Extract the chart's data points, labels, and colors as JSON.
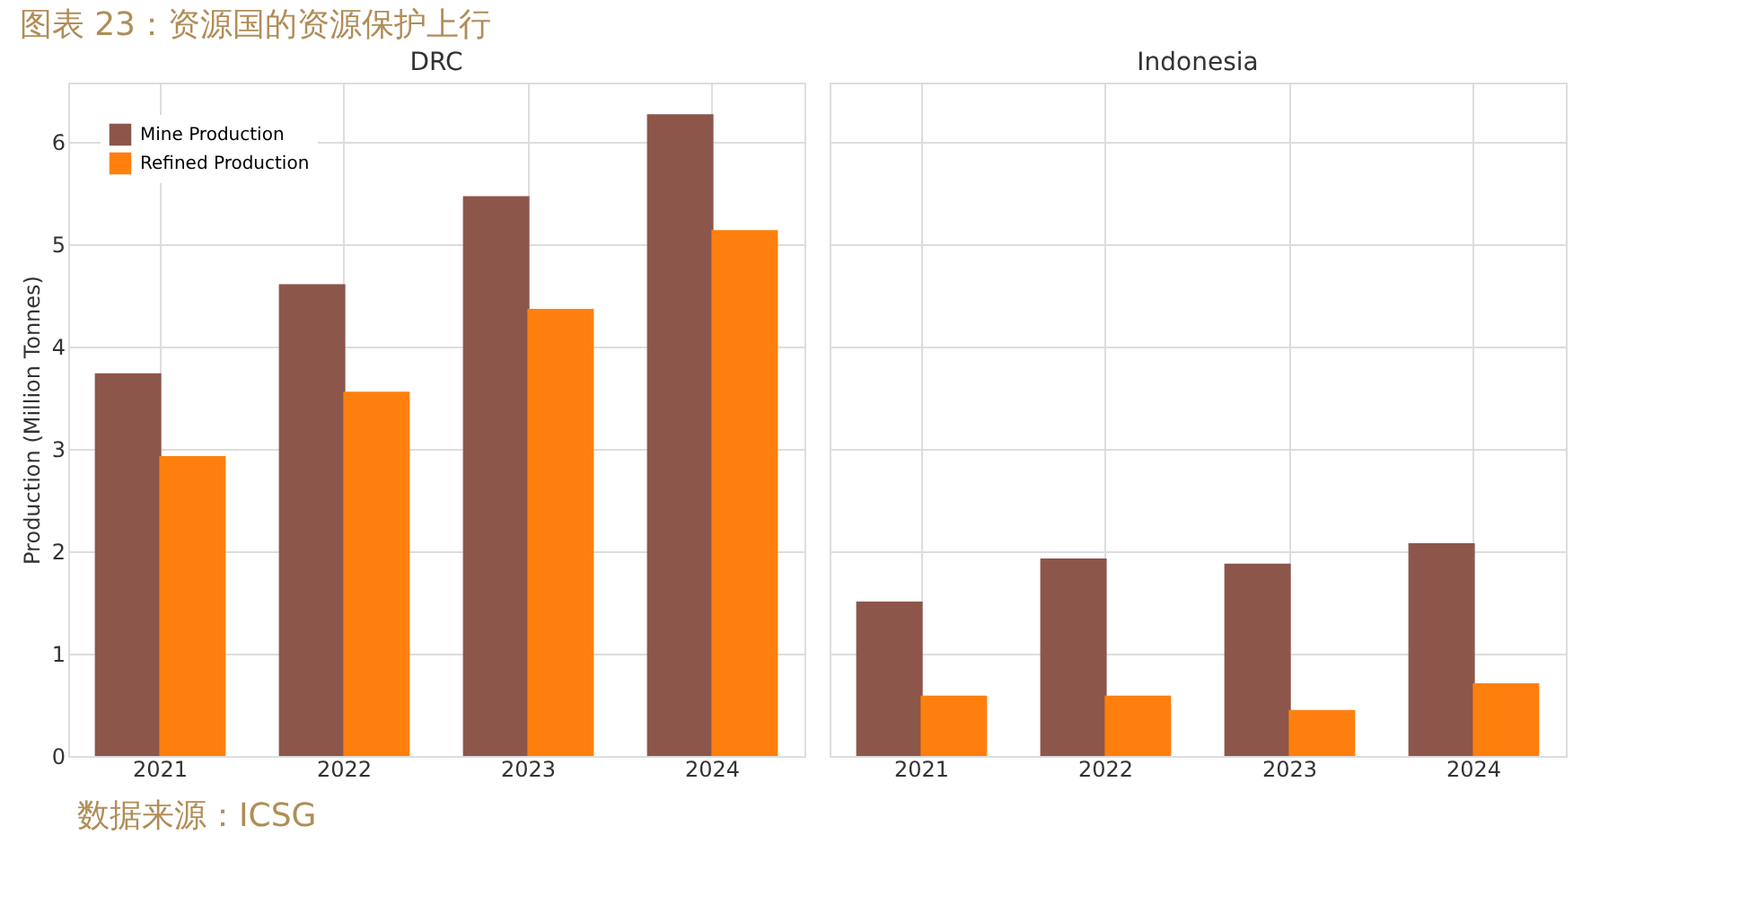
{
  "chart_data": [
    {
      "type": "bar",
      "title": "DRC",
      "ylabel": "Production (Million Tonnes)",
      "categories": [
        "2021",
        "2022",
        "2023",
        "2024"
      ],
      "series": [
        {
          "name": "Mine Production",
          "color": "#8c564b",
          "values": [
            3.74,
            4.61,
            5.47,
            6.27
          ]
        },
        {
          "name": "Refined Production",
          "color": "#ff7f0e",
          "values": [
            2.93,
            3.56,
            4.37,
            5.14
          ]
        }
      ],
      "ylim": [
        0,
        6.58
      ],
      "yticks": [
        0,
        1,
        2,
        3,
        4,
        5,
        6
      ],
      "grid": true,
      "legend": "top left",
      "annotations": [
        "图表 23：资源国的资源保护上行",
        "数据来源：ICSG"
      ]
    },
    {
      "type": "bar",
      "title": "Indonesia",
      "categories": [
        "2021",
        "2022",
        "2023",
        "2024"
      ],
      "series": [
        {
          "color": "#8c564b",
          "values": [
            1.51,
            1.93,
            1.88,
            2.08
          ]
        },
        {
          "color": "#ff7f0e",
          "values": [
            0.59,
            0.59,
            0.45,
            0.71
          ]
        }
      ],
      "ylim": [
        0,
        6.58
      ],
      "yticks": [
        0,
        1,
        2,
        3,
        4,
        5,
        6
      ],
      "grid": true,
      "tick_labels": "x"
    }
  ]
}
